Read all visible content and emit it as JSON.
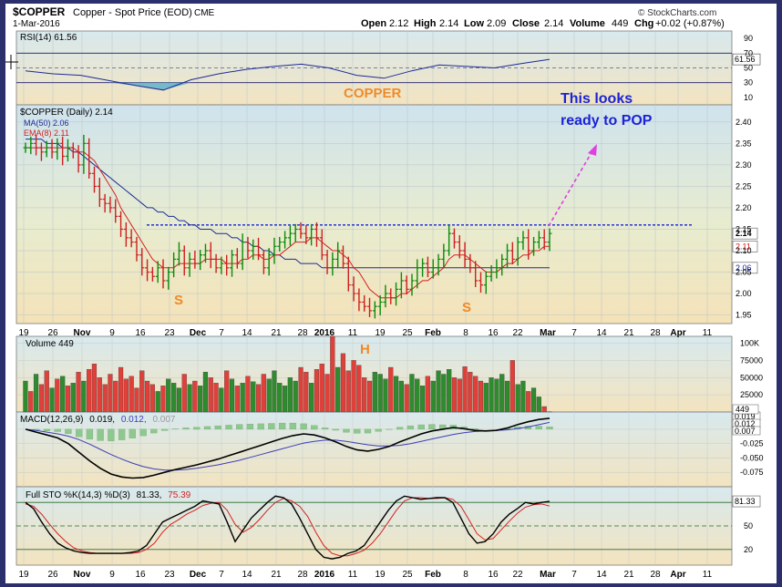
{
  "header": {
    "symbol": "$COPPER",
    "name": "Copper - Spot Price (EOD)",
    "exchange": "CME",
    "date": "1-Mar-2016",
    "open_label": "Open",
    "open": "2.12",
    "high_label": "High",
    "high": "2.14",
    "low_label": "Low",
    "low": "2.09",
    "close_label": "Close",
    "close": "2.14",
    "volume_label": "Volume",
    "volume": "449",
    "chg_label": "Chg",
    "chg": "+0.02 (+0.87%)",
    "brand": "© StockCharts.com"
  },
  "annotations": {
    "copper": "COPPER",
    "callout_line1": "This looks",
    "callout_line2": "ready to POP",
    "s_left": "S",
    "s_right": "S",
    "h": "H"
  },
  "colors": {
    "accent": "#1a23d6",
    "orange": "#f08a28",
    "magenta": "#e040e0",
    "up_bar": "#0a8a0a",
    "down_bar": "#cc2020",
    "ma50": "#1c2a99",
    "ema8": "#d42020"
  },
  "chart_data": [
    {
      "type": "line",
      "panel": "RSI",
      "legend": "RSI(14) 61.56",
      "ylim": [
        0,
        100
      ],
      "yticks": [
        10,
        30,
        50,
        70,
        90
      ],
      "levels": [
        30,
        70
      ],
      "right_value": "61.56",
      "x": [
        "2015-10-19",
        "2015-10-26",
        "2015-11-02",
        "2015-11-09",
        "2015-11-16",
        "2015-11-23",
        "2015-11-30",
        "2015-12-07",
        "2015-12-14",
        "2015-12-21",
        "2015-12-28",
        "2016-01-04",
        "2016-01-11",
        "2016-01-18",
        "2016-01-25",
        "2016-02-01",
        "2016-02-08",
        "2016-02-15",
        "2016-02-22",
        "2016-03-01"
      ],
      "values": [
        46,
        42,
        40,
        33,
        26,
        20,
        34,
        42,
        48,
        52,
        55,
        50,
        40,
        36,
        46,
        54,
        52,
        50,
        56,
        61.56
      ]
    },
    {
      "type": "bar",
      "panel": "Price",
      "subtype": "ohlc",
      "legend": "$COPPER (Daily) 2.14",
      "legend_ma": "MA(50) 2.06",
      "legend_ema": "EMA(8) 2.11",
      "ylim": [
        1.93,
        2.44
      ],
      "yticks": [
        1.95,
        2.0,
        2.05,
        2.1,
        2.15,
        2.2,
        2.25,
        2.3,
        2.35,
        2.4
      ],
      "neckline": 2.16,
      "right_labels": [
        "2.14",
        "2.11",
        "2.06"
      ],
      "x_labels": [
        "19",
        "26",
        "Nov",
        "9",
        "16",
        "23",
        "Dec",
        "7",
        "14",
        "21",
        "28",
        "2016",
        "11",
        "19",
        "25",
        "Feb",
        "8",
        "16",
        "22",
        "Mar",
        "7",
        "14",
        "21",
        "28",
        "Apr",
        "11"
      ],
      "close": [
        2.34,
        2.35,
        2.34,
        2.33,
        2.34,
        2.33,
        2.35,
        2.32,
        2.34,
        2.33,
        2.3,
        2.35,
        2.28,
        2.25,
        2.22,
        2.21,
        2.2,
        2.18,
        2.15,
        2.13,
        2.12,
        2.09,
        2.06,
        2.05,
        2.04,
        2.06,
        2.03,
        2.05,
        2.08,
        2.1,
        2.06,
        2.08,
        2.07,
        2.09,
        2.1,
        2.08,
        2.06,
        2.07,
        2.06,
        2.09,
        2.07,
        2.12,
        2.1,
        2.11,
        2.09,
        2.06,
        2.09,
        2.11,
        2.12,
        2.13,
        2.14,
        2.15,
        2.14,
        2.13,
        2.15,
        2.13,
        2.09,
        2.06,
        2.08,
        2.1,
        2.07,
        2.02,
        2.0,
        1.98,
        1.97,
        1.96,
        1.97,
        1.98,
        2.0,
        1.99,
        2.01,
        2.03,
        2.01,
        2.03,
        2.06,
        2.07,
        2.05,
        2.06,
        2.08,
        2.1,
        2.14,
        2.12,
        2.1,
        2.08,
        2.06,
        2.03,
        2.02,
        2.04,
        2.05,
        2.06,
        2.08,
        2.1,
        2.08,
        2.12,
        2.13,
        2.1,
        2.12,
        2.13,
        2.12,
        2.14
      ],
      "ma50": [
        2.36,
        2.36,
        2.36,
        2.36,
        2.35,
        2.35,
        2.35,
        2.34,
        2.34,
        2.33,
        2.33,
        2.32,
        2.31,
        2.3,
        2.29,
        2.28,
        2.27,
        2.26,
        2.25,
        2.24,
        2.23,
        2.22,
        2.21,
        2.2,
        2.2,
        2.19,
        2.19,
        2.18,
        2.18,
        2.17,
        2.17,
        2.16,
        2.16,
        2.15,
        2.15,
        2.15,
        2.14,
        2.14,
        2.14,
        2.13,
        2.13,
        2.12,
        2.12,
        2.11,
        2.11,
        2.1,
        2.1,
        2.09,
        2.09,
        2.08,
        2.08,
        2.08,
        2.07,
        2.07,
        2.07,
        2.07,
        2.06,
        2.06,
        2.06,
        2.06,
        2.06,
        2.06,
        2.06,
        2.06,
        2.06,
        2.06,
        2.06,
        2.06,
        2.06,
        2.06,
        2.06,
        2.06,
        2.06,
        2.06,
        2.06,
        2.06,
        2.06,
        2.06,
        2.06,
        2.06,
        2.06,
        2.06,
        2.06,
        2.06,
        2.06,
        2.06,
        2.06,
        2.06,
        2.06,
        2.06,
        2.06,
        2.06,
        2.06,
        2.06,
        2.06,
        2.06,
        2.06,
        2.06,
        2.06,
        2.06
      ],
      "ema8": [
        2.34,
        2.34,
        2.34,
        2.34,
        2.34,
        2.34,
        2.34,
        2.34,
        2.34,
        2.34,
        2.33,
        2.33,
        2.32,
        2.31,
        2.29,
        2.27,
        2.25,
        2.23,
        2.2,
        2.18,
        2.16,
        2.14,
        2.12,
        2.1,
        2.08,
        2.07,
        2.06,
        2.06,
        2.06,
        2.07,
        2.07,
        2.07,
        2.07,
        2.07,
        2.08,
        2.08,
        2.08,
        2.08,
        2.07,
        2.07,
        2.07,
        2.08,
        2.08,
        2.09,
        2.09,
        2.08,
        2.08,
        2.09,
        2.09,
        2.1,
        2.11,
        2.12,
        2.12,
        2.12,
        2.13,
        2.13,
        2.12,
        2.11,
        2.1,
        2.1,
        2.09,
        2.08,
        2.06,
        2.05,
        2.03,
        2.01,
        2.0,
        1.99,
        1.99,
        1.99,
        1.99,
        2.0,
        2.0,
        2.01,
        2.02,
        2.03,
        2.03,
        2.04,
        2.05,
        2.06,
        2.08,
        2.09,
        2.09,
        2.09,
        2.08,
        2.07,
        2.06,
        2.05,
        2.05,
        2.05,
        2.06,
        2.07,
        2.07,
        2.08,
        2.09,
        2.09,
        2.1,
        2.1,
        2.11,
        2.11
      ]
    },
    {
      "type": "bar",
      "panel": "Volume",
      "legend": "Volume 449",
      "ylim": [
        0,
        110000
      ],
      "ytick_labels": [
        "100K",
        "75000",
        "50000",
        "25000",
        "449"
      ],
      "yticks": [
        100000,
        75000,
        50000,
        25000
      ],
      "values": [
        45000,
        30000,
        55000,
        40000,
        60000,
        35000,
        48000,
        52000,
        38000,
        42000,
        58000,
        45000,
        62000,
        70000,
        50000,
        40000,
        55000,
        45000,
        65000,
        48000,
        52000,
        35000,
        60000,
        45000,
        40000,
        30000,
        38000,
        48000,
        42000,
        35000,
        55000,
        40000,
        45000,
        38000,
        58000,
        50000,
        42000,
        35000,
        60000,
        48000,
        38000,
        42000,
        52000,
        44000,
        40000,
        55000,
        48000,
        60000,
        42000,
        38000,
        50000,
        45000,
        65000,
        58000,
        42000,
        62000,
        70000,
        55000,
        112000,
        65000,
        85000,
        60000,
        75000,
        68000,
        50000,
        45000,
        58000,
        55000,
        48000,
        65000,
        52000,
        45000,
        40000,
        55000,
        48000,
        38000,
        52000,
        45000,
        60000,
        55000,
        62000,
        50000,
        48000,
        66000,
        58000,
        52000,
        45000,
        42000,
        50000,
        48000,
        55000,
        45000,
        75000,
        40000,
        45000,
        30000,
        35000,
        22000,
        8000,
        449
      ],
      "up": [
        1,
        0,
        1,
        0,
        0,
        1,
        0,
        1,
        0,
        1,
        0,
        1,
        0,
        0,
        0,
        0,
        0,
        0,
        0,
        0,
        0,
        0,
        0,
        0,
        0,
        1,
        0,
        1,
        1,
        1,
        0,
        1,
        0,
        1,
        1,
        0,
        0,
        1,
        0,
        1,
        0,
        1,
        0,
        1,
        0,
        0,
        1,
        1,
        1,
        1,
        1,
        1,
        0,
        0,
        1,
        0,
        0,
        0,
        0,
        1,
        0,
        0,
        0,
        0,
        0,
        0,
        1,
        1,
        1,
        0,
        1,
        1,
        0,
        1,
        1,
        1,
        0,
        1,
        1,
        1,
        1,
        0,
        0,
        0,
        0,
        0,
        0,
        1,
        1,
        1,
        1,
        1,
        0,
        1,
        1,
        0,
        1,
        1,
        0,
        1
      ]
    },
    {
      "type": "line",
      "panel": "MACD",
      "legend": "MACD(12,26,9) 0.019, 0.012, 0.007",
      "legend_main": "MACD(12,26,9)",
      "legend_v1": "0.019,",
      "legend_v2": "0.012,",
      "legend_v3": "0.007",
      "ylim": [
        -0.1,
        0.03
      ],
      "yticks": [
        0,
        -0.025,
        -0.05,
        -0.075
      ],
      "ytick_labels": [
        "-0.025",
        "-0.050",
        "-0.075"
      ],
      "right_labels": [
        "0.019",
        "0.012",
        "0.007"
      ],
      "macd": [
        0.0,
        -0.005,
        -0.01,
        -0.015,
        -0.025,
        -0.04,
        -0.055,
        -0.068,
        -0.078,
        -0.083,
        -0.085,
        -0.084,
        -0.08,
        -0.075,
        -0.07,
        -0.066,
        -0.062,
        -0.057,
        -0.052,
        -0.046,
        -0.04,
        -0.034,
        -0.028,
        -0.022,
        -0.016,
        -0.011,
        -0.008,
        -0.01,
        -0.015,
        -0.022,
        -0.03,
        -0.036,
        -0.038,
        -0.035,
        -0.03,
        -0.022,
        -0.015,
        -0.008,
        -0.003,
        0.0,
        0.003,
        0.001,
        -0.002,
        -0.003,
        -0.002,
        0.002,
        0.008,
        0.013,
        0.017,
        0.019
      ],
      "signal": [
        0.0,
        -0.002,
        -0.005,
        -0.008,
        -0.012,
        -0.018,
        -0.026,
        -0.035,
        -0.044,
        -0.052,
        -0.059,
        -0.065,
        -0.069,
        -0.071,
        -0.071,
        -0.07,
        -0.068,
        -0.065,
        -0.062,
        -0.058,
        -0.054,
        -0.049,
        -0.044,
        -0.039,
        -0.034,
        -0.029,
        -0.024,
        -0.021,
        -0.019,
        -0.019,
        -0.021,
        -0.024,
        -0.027,
        -0.029,
        -0.029,
        -0.028,
        -0.025,
        -0.021,
        -0.017,
        -0.013,
        -0.009,
        -0.006,
        -0.004,
        -0.003,
        -0.002,
        -0.001,
        0.001,
        0.004,
        0.008,
        0.012
      ]
    },
    {
      "type": "line",
      "panel": "STO",
      "legend": "Full STO %K(14,3) %D(3) 81.33, 75.39",
      "legend_main": "Full STO %K(14,3) %D(3)",
      "legend_k": "81.33,",
      "legend_d": "75.39",
      "ylim": [
        0,
        100
      ],
      "yticks": [
        20,
        50,
        80
      ],
      "right_value": "81.33",
      "k": [
        80,
        72,
        55,
        40,
        28,
        22,
        18,
        16,
        15,
        15,
        15,
        15,
        15,
        16,
        18,
        25,
        40,
        55,
        60,
        65,
        70,
        75,
        82,
        80,
        78,
        55,
        30,
        45,
        60,
        70,
        80,
        88,
        86,
        78,
        60,
        40,
        20,
        10,
        8,
        10,
        15,
        18,
        25,
        40,
        55,
        70,
        82,
        88,
        86,
        84,
        85,
        86,
        86,
        80,
        60,
        40,
        28,
        30,
        40,
        55,
        65,
        72,
        80,
        78,
        80,
        81.33
      ],
      "d": [
        78,
        75,
        65,
        52,
        40,
        30,
        22,
        18,
        16,
        15,
        15,
        15,
        15,
        15,
        16,
        20,
        28,
        42,
        52,
        58,
        65,
        70,
        76,
        79,
        80,
        70,
        52,
        42,
        48,
        58,
        70,
        80,
        85,
        82,
        75,
        62,
        42,
        25,
        15,
        12,
        12,
        15,
        19,
        28,
        40,
        55,
        70,
        82,
        86,
        86,
        85,
        85,
        86,
        84,
        75,
        58,
        40,
        32,
        34,
        45,
        56,
        66,
        74,
        77,
        78,
        75.39
      ],
      "x_labels": [
        "19",
        "26",
        "Nov",
        "9",
        "16",
        "23",
        "Dec",
        "7",
        "14",
        "21",
        "28",
        "2016",
        "11",
        "19",
        "25",
        "Feb",
        "8",
        "16",
        "22",
        "Mar",
        "7",
        "14",
        "21",
        "28",
        "Apr",
        "11"
      ]
    }
  ]
}
